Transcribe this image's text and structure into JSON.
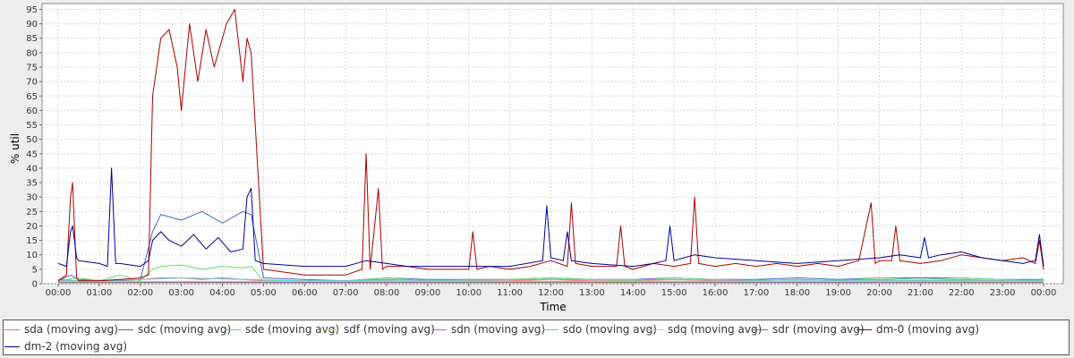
{
  "chart_data": {
    "type": "line",
    "title": "",
    "xlabel": "Time",
    "ylabel": "% util",
    "ylim": [
      0,
      97
    ],
    "yticks": [
      0,
      5,
      10,
      15,
      20,
      25,
      30,
      35,
      40,
      45,
      50,
      55,
      60,
      65,
      70,
      75,
      80,
      85,
      90,
      95
    ],
    "xlim": [
      0,
      24
    ],
    "xticks": [
      "00:00",
      "01:00",
      "02:00",
      "03:00",
      "04:00",
      "05:00",
      "06:00",
      "07:00",
      "08:00",
      "09:00",
      "10:00",
      "11:00",
      "12:00",
      "13:00",
      "14:00",
      "15:00",
      "16:00",
      "17:00",
      "18:00",
      "19:00",
      "20:00",
      "21:00",
      "22:00",
      "23:00",
      "00:00"
    ],
    "grid": true,
    "legend_position": "bottom",
    "series": [
      {
        "name": "sda (moving avg)",
        "color": "#ff6666",
        "x": [
          0.0,
          0.5,
          1.0,
          1.5,
          2.0,
          2.5,
          3.0,
          3.5,
          4.0,
          4.5,
          5.0,
          6.0,
          7.0,
          8.0,
          9.0,
          10.0,
          11.0,
          12.0,
          13.0,
          14.0,
          15.0,
          16.0,
          17.0,
          18.0,
          19.0,
          20.0,
          21.0,
          22.0,
          23.0,
          24.0
        ],
        "y": [
          1.5,
          1.0,
          1.2,
          1.0,
          1.5,
          2.0,
          2.0,
          1.5,
          2.0,
          1.5,
          1.0,
          1.0,
          1.0,
          1.5,
          1.0,
          1.0,
          1.0,
          1.5,
          1.0,
          1.0,
          1.5,
          1.0,
          1.0,
          1.5,
          1.0,
          1.5,
          1.0,
          1.5,
          1.0,
          1.0
        ]
      },
      {
        "name": "sdc (moving avg)",
        "color": "#4466cc",
        "x": [
          0.0,
          0.3,
          0.5,
          1.0,
          1.5,
          2.0,
          2.3,
          2.5,
          3.0,
          3.5,
          4.0,
          4.5,
          4.7,
          5.0,
          6.0,
          7.0,
          8.0,
          9.0,
          10.0,
          11.0,
          12.0,
          13.0,
          14.0,
          15.0,
          16.0,
          17.0,
          18.0,
          19.0,
          20.0,
          21.0,
          22.0,
          23.0,
          24.0
        ],
        "y": [
          1.0,
          3.0,
          1.5,
          1.0,
          1.0,
          1.5,
          18.0,
          24.0,
          22.0,
          25.0,
          21.0,
          25.0,
          24.0,
          2.0,
          1.5,
          1.0,
          2.0,
          1.5,
          1.5,
          1.5,
          2.0,
          1.5,
          1.5,
          2.0,
          1.5,
          1.5,
          2.0,
          1.5,
          2.0,
          2.0,
          2.0,
          1.5,
          1.5
        ]
      },
      {
        "name": "sde (moving avg)",
        "color": "#66dd66",
        "x": [
          0.0,
          0.5,
          1.0,
          1.5,
          2.0,
          2.3,
          2.5,
          3.0,
          3.5,
          4.0,
          4.5,
          4.7,
          5.0,
          6.0,
          7.0,
          8.0,
          9.0,
          10.0,
          11.0,
          12.0,
          13.0,
          14.0,
          15.0,
          16.0,
          17.0,
          18.0,
          19.0,
          20.0,
          21.0,
          22.0,
          23.0,
          24.0
        ],
        "y": [
          1.0,
          2.0,
          1.0,
          3.0,
          1.0,
          5.0,
          6.0,
          6.5,
          5.0,
          6.0,
          5.5,
          6.0,
          1.0,
          1.0,
          1.0,
          2.0,
          1.0,
          1.0,
          1.5,
          2.0,
          1.5,
          1.0,
          2.0,
          1.5,
          1.0,
          1.5,
          1.0,
          2.0,
          1.5,
          2.0,
          1.5,
          1.0
        ]
      },
      {
        "name": "sdf (moving avg)",
        "color": "#eedd00",
        "x": [
          0.0,
          6.0,
          12.0,
          18.0,
          24.0
        ],
        "y": [
          0.5,
          0.5,
          0.5,
          0.5,
          0.5
        ]
      },
      {
        "name": "sdn (moving avg)",
        "color": "#dd55dd",
        "x": [
          0.0,
          6.0,
          12.0,
          18.0,
          24.0
        ],
        "y": [
          0.7,
          0.6,
          0.7,
          0.6,
          0.7
        ]
      },
      {
        "name": "sdo (moving avg)",
        "color": "#55ccdd",
        "x": [
          0.0,
          1.5,
          3.0,
          6.0,
          12.0,
          18.0,
          24.0
        ],
        "y": [
          1.0,
          1.2,
          2.0,
          1.0,
          1.5,
          1.2,
          1.0
        ]
      },
      {
        "name": "sdq (moving avg)",
        "color": "#ffaaaa",
        "x": [
          0.0,
          6.0,
          12.0,
          18.0,
          24.0
        ],
        "y": [
          0.8,
          0.8,
          0.9,
          0.8,
          0.8
        ]
      },
      {
        "name": "sdr (moving avg)",
        "color": "#777777",
        "x": [
          0.0,
          6.0,
          12.0,
          18.0,
          24.0
        ],
        "y": [
          0.4,
          0.4,
          0.4,
          0.4,
          0.4
        ]
      },
      {
        "name": "dm-0 (moving avg)",
        "color": "#aa0000",
        "x": [
          0.0,
          0.2,
          0.3,
          0.35,
          0.45,
          0.5,
          1.0,
          1.5,
          2.0,
          2.2,
          2.3,
          2.5,
          2.7,
          2.9,
          3.0,
          3.2,
          3.4,
          3.6,
          3.8,
          4.0,
          4.1,
          4.3,
          4.5,
          4.6,
          4.7,
          4.8,
          5.0,
          6.0,
          7.0,
          7.4,
          7.5,
          7.6,
          7.8,
          7.9,
          8.0,
          8.5,
          9.0,
          10.0,
          10.1,
          10.2,
          10.5,
          11.0,
          11.5,
          12.0,
          12.4,
          12.5,
          12.6,
          13.0,
          13.6,
          13.7,
          13.8,
          14.0,
          14.5,
          15.0,
          15.4,
          15.5,
          15.6,
          16.0,
          16.5,
          17.0,
          17.5,
          18.0,
          18.5,
          19.0,
          19.5,
          19.8,
          19.9,
          20.0,
          20.3,
          20.4,
          20.5,
          21.0,
          21.5,
          22.0,
          22.5,
          23.0,
          23.5,
          23.8,
          23.9,
          24.0
        ],
        "y": [
          1.0,
          3.0,
          30.0,
          35.0,
          2.0,
          1.0,
          1.0,
          1.5,
          2.0,
          3.0,
          65.0,
          85.0,
          88.0,
          75.0,
          60.0,
          90.0,
          70.0,
          88.0,
          75.0,
          85.0,
          90.0,
          95.0,
          70.0,
          85.0,
          80.0,
          55.0,
          5.0,
          3.0,
          3.0,
          5.0,
          45.0,
          5.0,
          33.0,
          5.0,
          6.0,
          6.0,
          5.0,
          5.0,
          18.0,
          5.0,
          6.0,
          5.0,
          6.0,
          8.0,
          6.0,
          28.0,
          7.0,
          6.0,
          6.0,
          20.0,
          6.0,
          5.0,
          7.0,
          6.0,
          7.0,
          30.0,
          7.0,
          6.0,
          7.0,
          6.0,
          7.0,
          6.0,
          7.0,
          6.0,
          8.0,
          28.0,
          7.0,
          8.0,
          8.0,
          20.0,
          8.0,
          7.0,
          8.0,
          10.0,
          9.0,
          8.0,
          9.0,
          7.0,
          15.0,
          5.0
        ]
      },
      {
        "name": "dm-2 (moving avg)",
        "color": "#000099",
        "x": [
          0.0,
          0.2,
          0.3,
          0.35,
          0.45,
          0.5,
          1.0,
          1.2,
          1.3,
          1.4,
          1.5,
          2.0,
          2.2,
          2.3,
          2.5,
          2.7,
          3.0,
          3.3,
          3.6,
          3.9,
          4.2,
          4.5,
          4.6,
          4.7,
          4.8,
          5.0,
          6.0,
          7.0,
          7.5,
          8.0,
          8.5,
          9.0,
          10.0,
          11.0,
          11.8,
          11.9,
          12.0,
          12.3,
          12.4,
          12.5,
          13.0,
          14.0,
          14.5,
          14.8,
          14.9,
          15.0,
          15.5,
          16.0,
          17.0,
          18.0,
          19.0,
          20.0,
          20.5,
          21.0,
          21.1,
          21.2,
          21.5,
          22.0,
          22.5,
          23.0,
          23.5,
          23.8,
          23.9,
          24.0
        ],
        "y": [
          7.0,
          6.0,
          18.0,
          20.0,
          9.0,
          8.0,
          7.0,
          6.0,
          40.0,
          7.0,
          7.0,
          6.0,
          8.0,
          15.0,
          18.0,
          15.0,
          13.0,
          17.0,
          12.0,
          16.0,
          11.0,
          12.0,
          30.0,
          33.0,
          8.0,
          7.0,
          6.0,
          6.0,
          8.0,
          7.0,
          6.0,
          6.0,
          6.0,
          6.0,
          8.0,
          27.0,
          9.0,
          8.0,
          18.0,
          8.0,
          7.0,
          6.0,
          7.0,
          8.0,
          20.0,
          8.0,
          10.0,
          9.0,
          8.0,
          7.0,
          8.0,
          9.0,
          10.0,
          9.0,
          16.0,
          9.0,
          10.0,
          11.0,
          9.0,
          8.0,
          7.0,
          8.0,
          17.0,
          6.0
        ]
      }
    ]
  }
}
